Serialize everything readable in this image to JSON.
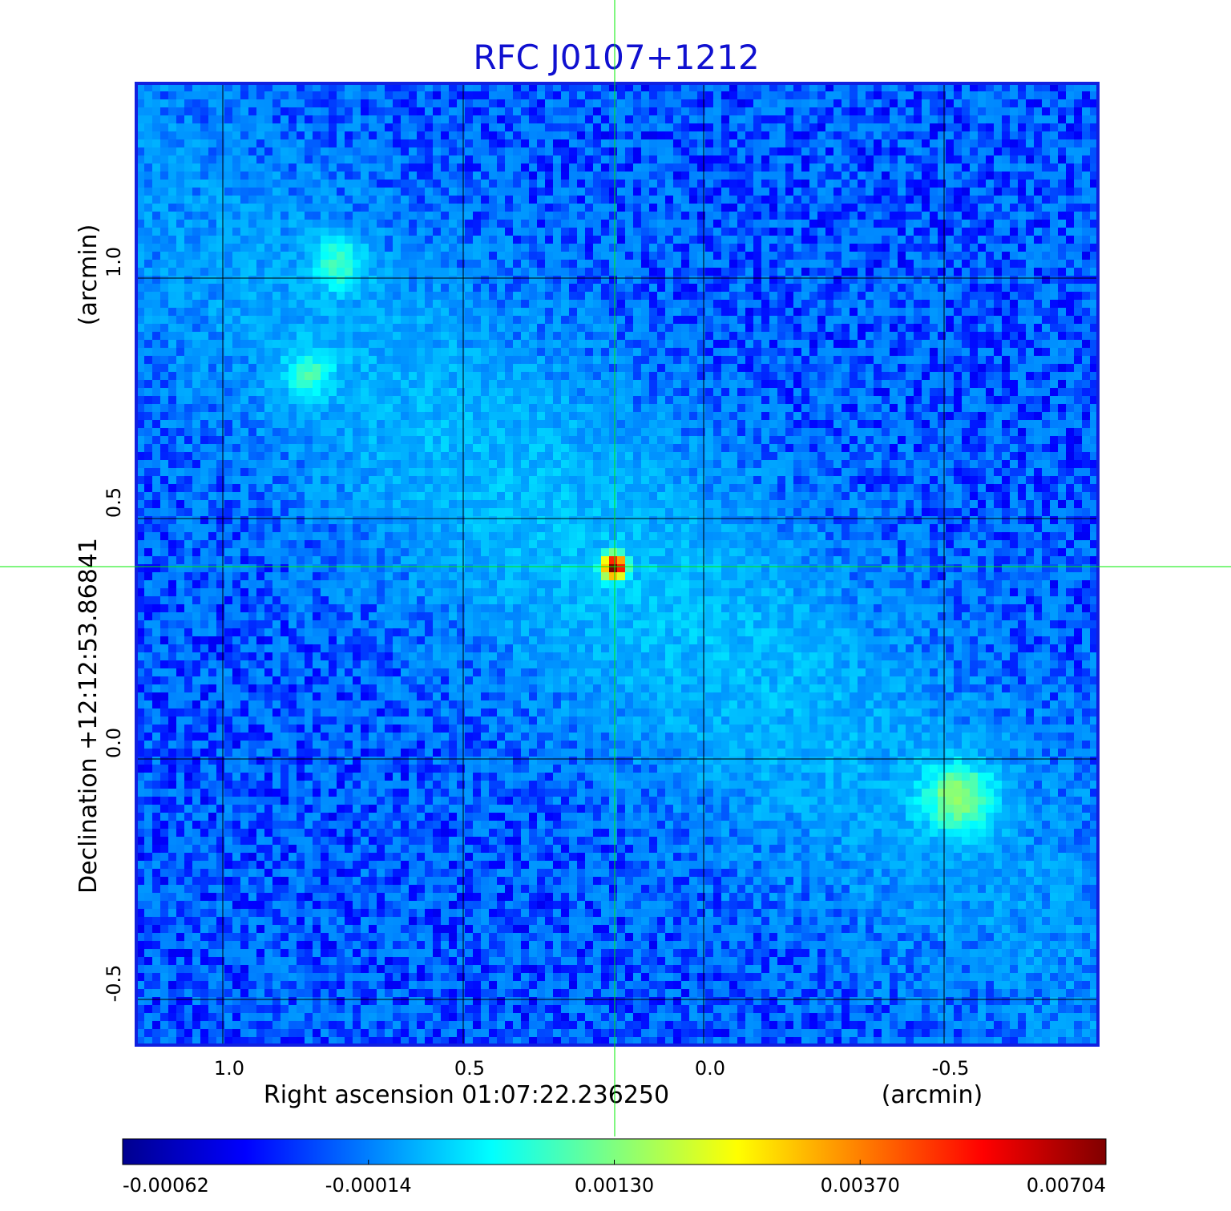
{
  "chart_data": {
    "type": "heatmap",
    "title": "RFC J0107+1212",
    "xlabel": "Right ascension  01:07:22.236250",
    "xunit": "(arcmin)",
    "ylabel": "Declination  +12:12:53.86841",
    "yunit": "(arcmin)",
    "x_ticks": [
      1.0,
      0.5,
      0.0,
      -0.5
    ],
    "x_tick_labels": [
      "1.0",
      "0.5",
      "0.0",
      "-0.5"
    ],
    "y_ticks": [
      1.0,
      0.5,
      0.0,
      -0.5
    ],
    "y_tick_labels": [
      "1.0",
      "0.5",
      "0.0",
      "-0.5"
    ],
    "xlim": [
      1.18,
      -0.82
    ],
    "ylim": [
      -0.595,
      1.405
    ],
    "grid": true,
    "crosshair": {
      "x": 0.185,
      "y": 0.4
    },
    "colorbar": {
      "colormap": "jet",
      "ticks": [
        -0.00062,
        -0.00014,
        0.0013,
        0.0037,
        0.00704
      ],
      "tick_labels": [
        "-0.00062",
        "-0.00014",
        "0.00130",
        "0.00370",
        "0.00704"
      ]
    },
    "features": [
      {
        "kind": "point-source",
        "x": 0.185,
        "y": 0.4,
        "value": 0.00704
      },
      {
        "kind": "extended-emission",
        "x": -0.53,
        "y": -0.08,
        "value": 0.0025
      },
      {
        "kind": "extended-emission",
        "x": 0.76,
        "y": 1.03,
        "value": 0.0016
      },
      {
        "kind": "extended-emission",
        "x": 0.82,
        "y": 0.8,
        "value": 0.0014
      }
    ],
    "background_level": -0.0002
  },
  "colors": {
    "title": "#1010d0",
    "frame": "#1020e0",
    "grid": "#000000",
    "crosshair": "#00ee00"
  }
}
